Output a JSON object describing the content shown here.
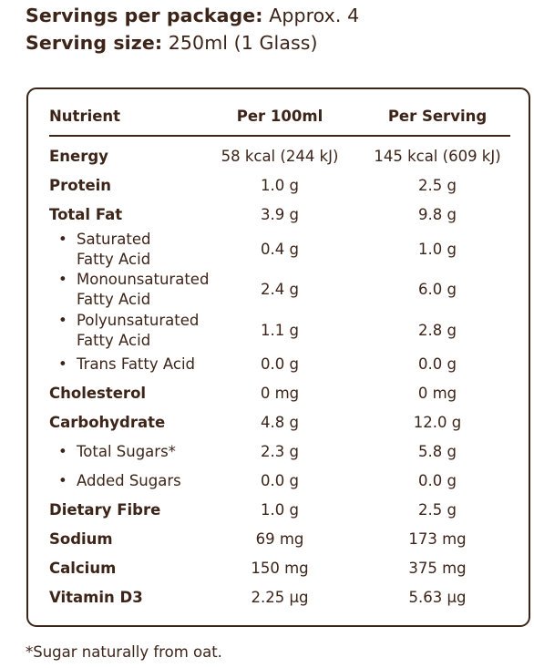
{
  "header": {
    "servings_label": "Servings per package:",
    "servings_value": "Approx. 4",
    "size_label": "Serving size:",
    "size_value": "250ml (1 Glass)"
  },
  "table": {
    "columns": [
      "Nutrient",
      "Per 100ml",
      "Per Serving"
    ],
    "rows": [
      {
        "name": "Energy",
        "per100": "58 kcal (244 kJ)",
        "serving": "145 kcal (609 kJ)"
      },
      {
        "name": "Protein",
        "per100": "1.0 g",
        "serving": "2.5 g"
      },
      {
        "name": "Total Fat",
        "per100": "3.9 g",
        "serving": "9.8 g"
      },
      {
        "name": "Saturated",
        "name2": "Fatty Acid",
        "per100": "0.4 g",
        "serving": "1.0 g"
      },
      {
        "name": "Monounsaturated",
        "name2": "Fatty Acid",
        "per100": "2.4 g",
        "serving": "6.0 g"
      },
      {
        "name": "Polyunsaturated",
        "name2": "Fatty Acid",
        "per100": "1.1 g",
        "serving": "2.8 g"
      },
      {
        "name": "Trans Fatty Acid",
        "per100": "0.0 g",
        "serving": "0.0 g"
      },
      {
        "name": "Cholesterol",
        "per100": "0 mg",
        "serving": "0 mg"
      },
      {
        "name": "Carbohydrate",
        "per100": "4.8 g",
        "serving": "12.0 g"
      },
      {
        "name": "Total Sugars*",
        "per100": "2.3 g",
        "serving": "5.8 g"
      },
      {
        "name": "Added Sugars",
        "per100": "0.0 g",
        "serving": "0.0 g"
      },
      {
        "name": "Dietary Fibre",
        "per100": "1.0 g",
        "serving": "2.5 g"
      },
      {
        "name": "Sodium",
        "per100": "69 mg",
        "serving": "173 mg"
      },
      {
        "name": "Calcium",
        "per100": "150 mg",
        "serving": "375 mg"
      },
      {
        "name": "Vitamin D3",
        "per100": "2.25 µg",
        "serving": "5.63 µg"
      }
    ]
  },
  "footnote": "*Sugar naturally from oat.",
  "colors": {
    "text": "#3d2418",
    "background": "#ffffff"
  }
}
